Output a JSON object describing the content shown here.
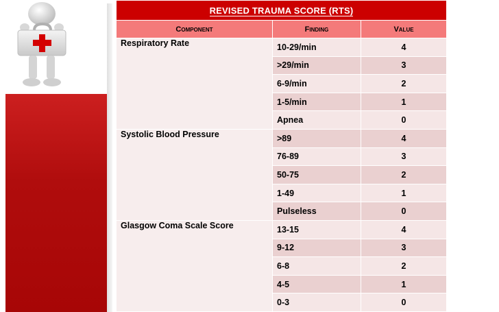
{
  "table": {
    "title": "REVISED TRAUMA SCORE (RTS)",
    "headers": {
      "component": "Component",
      "finding": "Finding",
      "value": "Value"
    },
    "groups": [
      {
        "component": "Respiratory Rate",
        "rows": [
          {
            "finding": "10-29/min",
            "value": "4"
          },
          {
            "finding": ">29/min",
            "value": "3"
          },
          {
            "finding": "6-9/min",
            "value": "2"
          },
          {
            "finding": "1-5/min",
            "value": "1"
          },
          {
            "finding": "Apnea",
            "value": "0"
          }
        ]
      },
      {
        "component": "Systolic Blood Pressure",
        "rows": [
          {
            "finding": ">89",
            "value": "4"
          },
          {
            "finding": "76-89",
            "value": "3"
          },
          {
            "finding": "50-75",
            "value": "2"
          },
          {
            "finding": "1-49",
            "value": "1"
          },
          {
            "finding": "Pulseless",
            "value": "0"
          }
        ]
      },
      {
        "component": "Glasgow Coma Scale Score",
        "rows": [
          {
            "finding": "13-15",
            "value": "4"
          },
          {
            "finding": "9-12",
            "value": "3"
          },
          {
            "finding": "6-8",
            "value": "2"
          },
          {
            "finding": "4-5",
            "value": "1"
          },
          {
            "finding": "0-3",
            "value": "0"
          }
        ]
      }
    ]
  },
  "colors": {
    "title_bg": "#cc0000",
    "header_bg": "#f47a7a",
    "row_light": "#f5e6e6",
    "row_dark": "#ead0d0",
    "side_panel": "#b00d0d"
  },
  "icons": {
    "figure": "first-aid-kit-figure-icon"
  }
}
